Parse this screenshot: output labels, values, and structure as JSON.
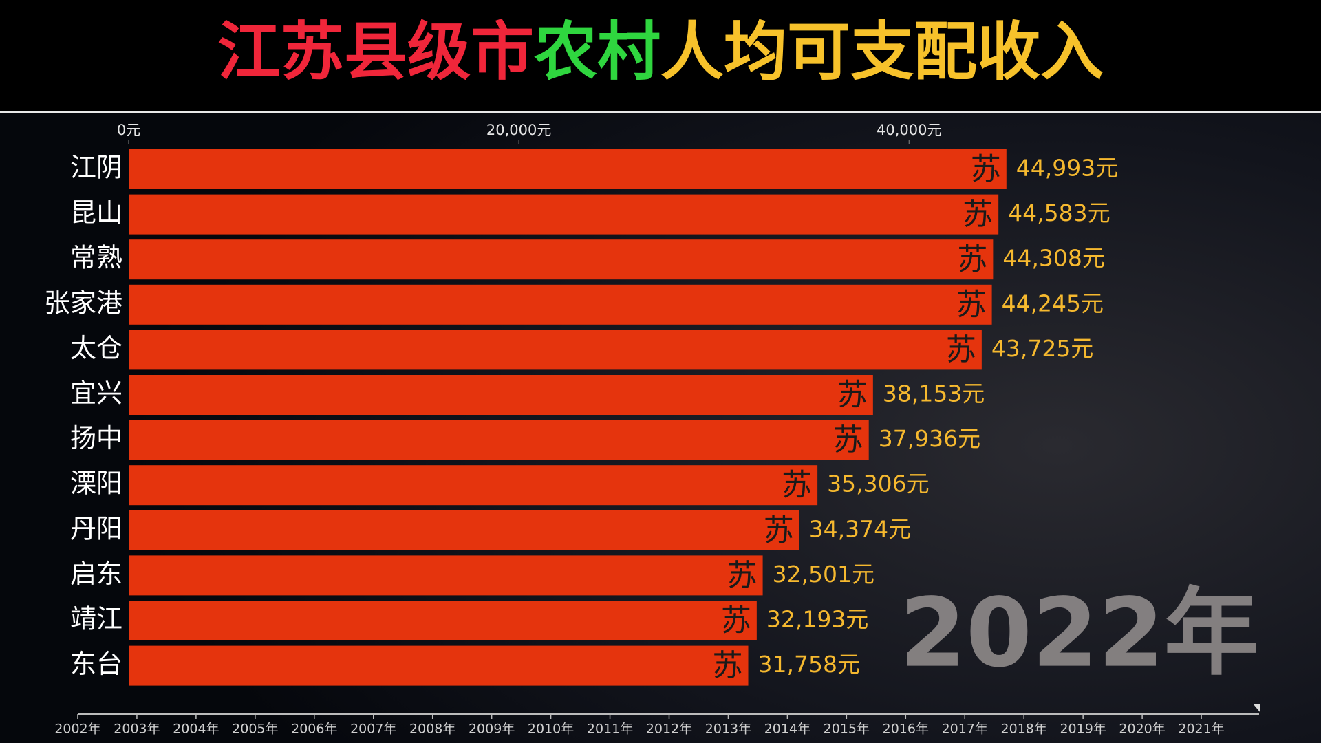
{
  "chart_data": {
    "type": "bar",
    "orientation": "horizontal",
    "title": [
      {
        "text": "江苏县级市",
        "color": "#f0263a"
      },
      {
        "text": "农村",
        "color": "#2fd63f"
      },
      {
        "text": "人均可支配收入",
        "color": "#f7c22b"
      }
    ],
    "categories": [
      "江阴",
      "昆山",
      "常熟",
      "张家港",
      "太仓",
      "宜兴",
      "扬中",
      "溧阳",
      "丹阳",
      "启东",
      "靖江",
      "东台"
    ],
    "values": [
      44993,
      44583,
      44308,
      44245,
      43725,
      38153,
      37936,
      35306,
      34374,
      32501,
      32193,
      31758
    ],
    "value_labels": [
      "44,993元",
      "44,583元",
      "44,308元",
      "44,245元",
      "43,725元",
      "38,153元",
      "37,936元",
      "35,306元",
      "34,374元",
      "32,501元",
      "32,193元",
      "31,758元"
    ],
    "bar_icon": "苏",
    "color": "#e5340d",
    "xlim": [
      0,
      45000
    ],
    "xticks": [
      {
        "value": 0,
        "label": "0元"
      },
      {
        "value": 20000,
        "label": "20,000元"
      },
      {
        "value": 40000,
        "label": "40,000元"
      }
    ],
    "year": "2022年",
    "timeline": [
      "2002年",
      "2003年",
      "2004年",
      "2005年",
      "2006年",
      "2007年",
      "2008年",
      "2009年",
      "2010年",
      "2011年",
      "2012年",
      "2013年",
      "2014年",
      "2015年",
      "2016年",
      "2017年",
      "2018年",
      "2019年",
      "2020年",
      "2021年"
    ]
  }
}
